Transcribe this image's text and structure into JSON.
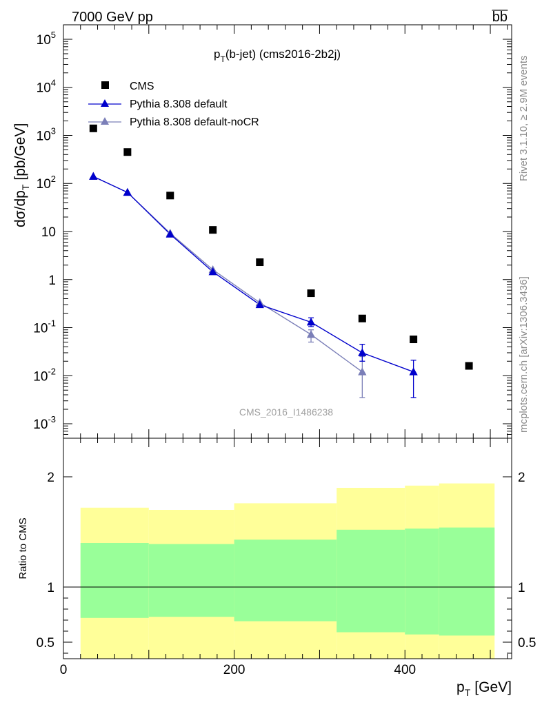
{
  "header": {
    "left": "7000 GeV pp",
    "right": "b̅b̅"
  },
  "side_labels": {
    "rivet": "Rivet 3.1.10, ≥ 2.9M events",
    "mcplots": "mcplots.cern.ch [arXiv:1306.3436]"
  },
  "chart_data": [
    {
      "type": "scatter",
      "title": "p_T(b-jet) (cms2016-2b2j)",
      "title_parts": {
        "p": "p",
        "sub": "T",
        "rest": "(b-jet) (cms2016-2b2j)"
      },
      "ylabel_parts": {
        "main": "dσ/dp",
        "sub": "T",
        "unit": "[pb/GeV]"
      },
      "xlabel_parts": {
        "main": "p",
        "sub": "T",
        "unit": "[GeV]"
      },
      "yscale": "log",
      "ylim": [
        0.0005,
        200000
      ],
      "xlim": [
        0,
        525
      ],
      "y_ticks": [
        "10^-3",
        "10^-2",
        "10^-1",
        "1",
        "10",
        "10^2",
        "10^3",
        "10^4",
        "10^5"
      ],
      "watermark": "CMS_2016_I1486238",
      "legend_placement": "top-left",
      "series": [
        {
          "name": "CMS",
          "color": "#000000",
          "marker": "square",
          "x": [
            35,
            75,
            125,
            175,
            230,
            290,
            350,
            410,
            475
          ],
          "y": [
            1400,
            450,
            56,
            10.8,
            2.3,
            0.52,
            0.155,
            0.057,
            0.016
          ]
        },
        {
          "name": "Pythia 8.308 default",
          "color": "#0000cc",
          "marker": "triangle",
          "x": [
            35,
            75,
            125,
            175,
            230,
            290,
            350,
            410
          ],
          "y": [
            140,
            65,
            8.8,
            1.45,
            0.3,
            0.13,
            0.03,
            0.012
          ],
          "yerr_low": [
            null,
            null,
            null,
            null,
            null,
            0.105,
            0.02,
            0.0035
          ],
          "yerr_high": [
            null,
            null,
            null,
            null,
            null,
            0.16,
            0.045,
            0.021
          ]
        },
        {
          "name": "Pythia 8.308 default-noCR",
          "color": "#7b7fb8",
          "marker": "triangle",
          "x": [
            35,
            75,
            125,
            175,
            230,
            290,
            350
          ],
          "y": [
            140,
            65,
            9.2,
            1.6,
            0.33,
            0.072,
            0.012
          ],
          "yerr_low": [
            null,
            null,
            null,
            null,
            null,
            0.05,
            0.0035
          ],
          "yerr_high": [
            null,
            null,
            null,
            null,
            null,
            0.09,
            0.025
          ]
        }
      ]
    },
    {
      "type": "area",
      "ylabel": "Ratio to CMS",
      "xlim": [
        0,
        525
      ],
      "ylim": [
        0.35,
        2.35
      ],
      "x_ticks": [
        "0",
        "200",
        "400"
      ],
      "y_ticks": [
        "0.5",
        "1",
        "2"
      ],
      "reference_line": 1,
      "bins": [
        {
          "xmin": 20,
          "xmax": 100,
          "green": [
            0.72,
            1.4
          ],
          "yellow": [
            0.35,
            1.72
          ]
        },
        {
          "xmin": 100,
          "xmax": 200,
          "green": [
            0.73,
            1.39
          ],
          "yellow": [
            0.35,
            1.7
          ]
        },
        {
          "xmin": 200,
          "xmax": 320,
          "green": [
            0.69,
            1.43
          ],
          "yellow": [
            0.35,
            1.76
          ]
        },
        {
          "xmin": 320,
          "xmax": 400,
          "green": [
            0.59,
            1.52
          ],
          "yellow": [
            0.35,
            1.9
          ]
        },
        {
          "xmin": 400,
          "xmax": 440,
          "green": [
            0.57,
            1.53
          ],
          "yellow": [
            0.35,
            1.92
          ]
        },
        {
          "xmin": 440,
          "xmax": 505,
          "green": [
            0.56,
            1.54
          ],
          "yellow": [
            0.35,
            1.94
          ]
        }
      ],
      "colors": {
        "green": "#99ff99",
        "yellow": "#ffff99"
      }
    }
  ]
}
